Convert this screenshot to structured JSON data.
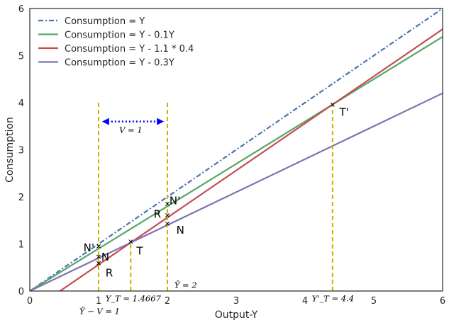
{
  "chart_data": {
    "type": "line",
    "xlabel": "Output-Y",
    "ylabel": "Consumption",
    "xlim": [
      0,
      6
    ],
    "ylim": [
      0,
      6
    ],
    "x_ticks": [
      "0",
      "1",
      "2",
      "3",
      "4",
      "5",
      "6"
    ],
    "y_ticks": [
      "0",
      "1",
      "2",
      "3",
      "4",
      "5",
      "6"
    ],
    "grid": false,
    "legend_position": "top-left",
    "series": [
      {
        "name": "Consumption = Y",
        "color": "#4c72b0",
        "style": "dashdot",
        "slope": 1.0,
        "intercept": 0.0
      },
      {
        "name": "Consumption = Y - 0.1Y",
        "color": "#55a868",
        "style": "solid",
        "slope": 0.9,
        "intercept": 0.0
      },
      {
        "name": "Consumption = Y - 1.1 * 0.4",
        "color": "#c44e52",
        "style": "solid",
        "slope": 1.0,
        "intercept": -0.44
      },
      {
        "name": "Consumption = Y - 0.3Y",
        "color": "#8172b2",
        "style": "solid",
        "slope": 0.7,
        "intercept": 0.0
      }
    ],
    "vlines": [
      {
        "x": 1.0,
        "y_max": 4.0,
        "color": "#c8b400"
      },
      {
        "x": 1.4667,
        "y_max": 1.05,
        "color": "#c8b400"
      },
      {
        "x": 2.0,
        "y_max": 4.0,
        "color": "#c8b400"
      },
      {
        "x": 4.4,
        "y_max": 3.96,
        "color": "#c8b400"
      }
    ],
    "markers": [
      {
        "x": 1.0,
        "y": 0.95
      },
      {
        "x": 1.0,
        "y": 0.73
      },
      {
        "x": 1.0,
        "y": 0.59
      },
      {
        "x": 1.4667,
        "y": 1.05
      },
      {
        "x": 2.0,
        "y": 1.85
      },
      {
        "x": 2.0,
        "y": 1.61
      },
      {
        "x": 2.0,
        "y": 1.43
      },
      {
        "x": 4.4,
        "y": 3.96
      }
    ],
    "point_labels": [
      {
        "text": "N'",
        "x": 0.78,
        "y": 0.92
      },
      {
        "text": "N",
        "x": 1.04,
        "y": 0.72
      },
      {
        "text": "R",
        "x": 1.1,
        "y": 0.38
      },
      {
        "text": "T",
        "x": 1.55,
        "y": 0.85
      },
      {
        "text": "N'",
        "x": 2.03,
        "y": 1.92
      },
      {
        "text": "R",
        "x": 1.8,
        "y": 1.63
      },
      {
        "text": "N",
        "x": 2.13,
        "y": 1.29
      },
      {
        "text": "T'",
        "x": 4.5,
        "y": 3.8
      }
    ],
    "math_labels": [
      {
        "text": "V = 1",
        "x": 1.3,
        "y": 3.42
      },
      {
        "text": "Y_T = 1.4667",
        "x": 1.1,
        "y": -0.16
      },
      {
        "text": "Ȳ = 2",
        "x": 2.1,
        "y": 0.13
      },
      {
        "text": "Y'_T = 4.4",
        "x": 4.1,
        "y": -0.16
      },
      {
        "text": "Ȳ − V = 1",
        "x": 0.72,
        "y": -0.43
      }
    ],
    "arrow": {
      "x_start": 1.05,
      "x_end": 1.95,
      "y": 3.6,
      "color": "#0000ff"
    }
  }
}
